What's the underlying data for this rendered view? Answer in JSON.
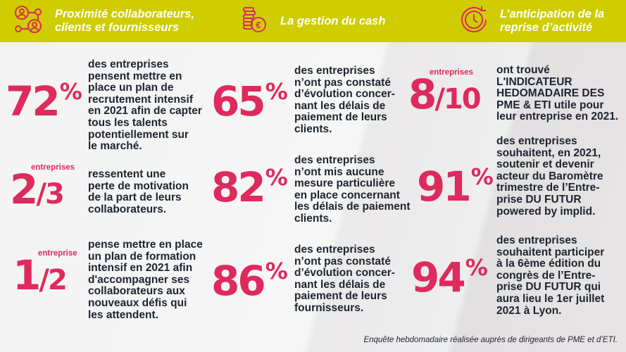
{
  "colors": {
    "accent": "#de2a5c",
    "header": "#cfcc00",
    "text": "#1d2430"
  },
  "header": [
    {
      "icon": "network-people-icon",
      "lines": [
        "Proximité collaborateurs,",
        "clients et fournisseurs"
      ]
    },
    {
      "icon": "coins-euro-icon",
      "lines": [
        "La gestion du cash"
      ]
    },
    {
      "icon": "clock-refresh-icon",
      "lines": [
        "L’anticipation de la",
        "reprise d’activité"
      ]
    }
  ],
  "stats": [
    {
      "type": "percent",
      "value": "72",
      "unit": "%",
      "lines": [
        "des entreprises",
        "pensent mettre en",
        "place un plan de",
        "recrutement intensif",
        "en 2021 afin de capter",
        "tous les talents",
        "potentiellement sur",
        "le marché."
      ]
    },
    {
      "type": "fraction",
      "value": "2",
      "denominator": "/3",
      "label": "entreprises",
      "lines": [
        "ressentent une",
        "perte de motivation",
        "de la part de leurs",
        "collaborateurs."
      ]
    },
    {
      "type": "fraction",
      "value": "1",
      "denominator": "/2",
      "label": "entreprise",
      "lines": [
        "pense mettre en place",
        "un plan de formation",
        "intensif en 2021 afin",
        "d'accompagner ses",
        "collaborateurs aux",
        "nouveaux défis qui",
        "les attendent."
      ]
    },
    {
      "type": "percent",
      "value": "65",
      "unit": "%",
      "lines": [
        "des entreprises",
        "n’ont pas constaté",
        "d’évolution concer-",
        "nant les délais de",
        "paiement de leurs",
        "clients."
      ]
    },
    {
      "type": "percent",
      "value": "82",
      "unit": "%",
      "lines": [
        "des entreprises",
        "n’ont mis aucune",
        "mesure particulière",
        "en place concernant",
        "les délais de paiement",
        "clients."
      ]
    },
    {
      "type": "percent",
      "value": "86",
      "unit": "%",
      "lines": [
        "des entreprises",
        "n’ont pas constaté",
        "d’évolution concer-",
        "nant les délais de",
        "paiement de leurs",
        "fournisseurs."
      ]
    },
    {
      "type": "fraction",
      "value": "8",
      "denominator": "/10",
      "label": "entreprises",
      "lines": [
        "ont trouvé",
        "L'INDICATEUR",
        "HEDOMADAIRE DES",
        "PME & ETI utile pour",
        "leur entreprise en 2021."
      ]
    },
    {
      "type": "percent",
      "value": "91",
      "unit": "%",
      "lines": [
        "des entreprises",
        "souhaitent, en 2021,",
        "soutenir et devenir",
        "acteur du Baromètre",
        "trimestre de l’Entre-",
        "prise DU FUTUR",
        "powered by implid."
      ]
    },
    {
      "type": "percent",
      "value": "94",
      "unit": "%",
      "lines": [
        "des entreprises",
        "souhaitent participer",
        "à la 6ème édition du",
        "congrès de l’Entre-",
        "prise DU FUTUR qui",
        "aura lieu le 1er juillet",
        "2021 à Lyon."
      ]
    }
  ],
  "footer": "Enquête hebdomadaire réalisée auprès de dirigeants de PME et d’ETI."
}
